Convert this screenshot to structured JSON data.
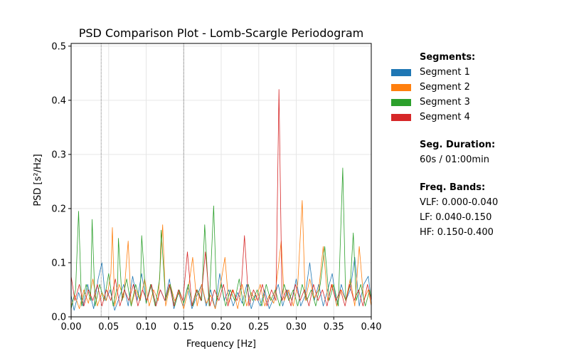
{
  "chart_data": {
    "type": "line",
    "title": "PSD Comparison Plot - Lomb-Scargle Periodogram",
    "xlabel": "Frequency [Hz]",
    "ylabel": "PSD [s²/Hz]",
    "xlim": [
      0.0,
      0.4
    ],
    "ylim": [
      0.0,
      0.505
    ],
    "xticks": [
      "0.00",
      "0.05",
      "0.10",
      "0.15",
      "0.20",
      "0.25",
      "0.30",
      "0.35",
      "0.40"
    ],
    "yticks": [
      "0.0",
      "0.1",
      "0.2",
      "0.3",
      "0.4",
      "0.5"
    ],
    "grid": true,
    "band_boundaries": [
      0.04,
      0.15
    ],
    "legend_placement": "right",
    "series": [
      {
        "name": "Segment 1",
        "color": "#1f77b4",
        "points": [
          [
            0.0,
            0.04
          ],
          [
            0.004,
            0.012
          ],
          [
            0.01,
            0.045
          ],
          [
            0.016,
            0.02
          ],
          [
            0.022,
            0.06
          ],
          [
            0.03,
            0.015
          ],
          [
            0.036,
            0.07
          ],
          [
            0.041,
            0.1
          ],
          [
            0.046,
            0.03
          ],
          [
            0.052,
            0.05
          ],
          [
            0.058,
            0.012
          ],
          [
            0.064,
            0.035
          ],
          [
            0.07,
            0.06
          ],
          [
            0.076,
            0.02
          ],
          [
            0.082,
            0.075
          ],
          [
            0.088,
            0.03
          ],
          [
            0.094,
            0.08
          ],
          [
            0.1,
            0.025
          ],
          [
            0.107,
            0.06
          ],
          [
            0.113,
            0.02
          ],
          [
            0.119,
            0.05
          ],
          [
            0.125,
            0.03
          ],
          [
            0.131,
            0.07
          ],
          [
            0.137,
            0.015
          ],
          [
            0.143,
            0.045
          ],
          [
            0.149,
            0.02
          ],
          [
            0.155,
            0.055
          ],
          [
            0.161,
            0.015
          ],
          [
            0.168,
            0.04
          ],
          [
            0.174,
            0.06
          ],
          [
            0.18,
            0.02
          ],
          [
            0.186,
            0.05
          ],
          [
            0.192,
            0.015
          ],
          [
            0.198,
            0.08
          ],
          [
            0.204,
            0.03
          ],
          [
            0.21,
            0.05
          ],
          [
            0.216,
            0.02
          ],
          [
            0.222,
            0.045
          ],
          [
            0.228,
            0.025
          ],
          [
            0.234,
            0.06
          ],
          [
            0.24,
            0.015
          ],
          [
            0.246,
            0.04
          ],
          [
            0.252,
            0.02
          ],
          [
            0.258,
            0.05
          ],
          [
            0.264,
            0.015
          ],
          [
            0.27,
            0.035
          ],
          [
            0.276,
            0.06
          ],
          [
            0.282,
            0.02
          ],
          [
            0.288,
            0.05
          ],
          [
            0.294,
            0.03
          ],
          [
            0.3,
            0.07
          ],
          [
            0.306,
            0.02
          ],
          [
            0.312,
            0.04
          ],
          [
            0.318,
            0.1
          ],
          [
            0.324,
            0.03
          ],
          [
            0.33,
            0.06
          ],
          [
            0.336,
            0.02
          ],
          [
            0.342,
            0.05
          ],
          [
            0.348,
            0.08
          ],
          [
            0.354,
            0.02
          ],
          [
            0.36,
            0.06
          ],
          [
            0.366,
            0.03
          ],
          [
            0.372,
            0.05
          ],
          [
            0.378,
            0.11
          ],
          [
            0.384,
            0.02
          ],
          [
            0.39,
            0.06
          ],
          [
            0.396,
            0.075
          ],
          [
            0.4,
            0.03
          ]
        ]
      },
      {
        "name": "Segment 2",
        "color": "#ff7f0e",
        "points": [
          [
            0.0,
            0.02
          ],
          [
            0.005,
            0.04
          ],
          [
            0.011,
            0.015
          ],
          [
            0.017,
            0.05
          ],
          [
            0.023,
            0.025
          ],
          [
            0.029,
            0.07
          ],
          [
            0.035,
            0.02
          ],
          [
            0.041,
            0.045
          ],
          [
            0.047,
            0.03
          ],
          [
            0.053,
            0.08
          ],
          [
            0.055,
            0.165
          ],
          [
            0.058,
            0.02
          ],
          [
            0.064,
            0.06
          ],
          [
            0.07,
            0.035
          ],
          [
            0.076,
            0.14
          ],
          [
            0.08,
            0.02
          ],
          [
            0.086,
            0.05
          ],
          [
            0.092,
            0.03
          ],
          [
            0.098,
            0.07
          ],
          [
            0.104,
            0.02
          ],
          [
            0.11,
            0.05
          ],
          [
            0.116,
            0.03
          ],
          [
            0.122,
            0.17
          ],
          [
            0.126,
            0.02
          ],
          [
            0.132,
            0.06
          ],
          [
            0.138,
            0.03
          ],
          [
            0.144,
            0.045
          ],
          [
            0.15,
            0.015
          ],
          [
            0.156,
            0.05
          ],
          [
            0.162,
            0.11
          ],
          [
            0.168,
            0.02
          ],
          [
            0.174,
            0.06
          ],
          [
            0.18,
            0.025
          ],
          [
            0.186,
            0.04
          ],
          [
            0.192,
            0.015
          ],
          [
            0.198,
            0.05
          ],
          [
            0.205,
            0.11
          ],
          [
            0.21,
            0.025
          ],
          [
            0.216,
            0.05
          ],
          [
            0.222,
            0.015
          ],
          [
            0.228,
            0.06
          ],
          [
            0.234,
            0.02
          ],
          [
            0.24,
            0.045
          ],
          [
            0.246,
            0.03
          ],
          [
            0.252,
            0.06
          ],
          [
            0.258,
            0.02
          ],
          [
            0.264,
            0.04
          ],
          [
            0.27,
            0.025
          ],
          [
            0.276,
            0.09
          ],
          [
            0.28,
            0.14
          ],
          [
            0.284,
            0.03
          ],
          [
            0.29,
            0.05
          ],
          [
            0.296,
            0.02
          ],
          [
            0.302,
            0.06
          ],
          [
            0.308,
            0.215
          ],
          [
            0.312,
            0.03
          ],
          [
            0.318,
            0.07
          ],
          [
            0.324,
            0.035
          ],
          [
            0.33,
            0.05
          ],
          [
            0.336,
            0.13
          ],
          [
            0.342,
            0.03
          ],
          [
            0.348,
            0.06
          ],
          [
            0.354,
            0.02
          ],
          [
            0.36,
            0.05
          ],
          [
            0.366,
            0.03
          ],
          [
            0.372,
            0.07
          ],
          [
            0.378,
            0.02
          ],
          [
            0.384,
            0.13
          ],
          [
            0.39,
            0.03
          ],
          [
            0.396,
            0.05
          ],
          [
            0.4,
            0.02
          ]
        ]
      },
      {
        "name": "Segment 3",
        "color": "#2ca02c",
        "points": [
          [
            0.0,
            0.015
          ],
          [
            0.006,
            0.05
          ],
          [
            0.01,
            0.195
          ],
          [
            0.014,
            0.02
          ],
          [
            0.02,
            0.06
          ],
          [
            0.026,
            0.03
          ],
          [
            0.028,
            0.18
          ],
          [
            0.032,
            0.02
          ],
          [
            0.038,
            0.06
          ],
          [
            0.044,
            0.03
          ],
          [
            0.05,
            0.08
          ],
          [
            0.056,
            0.02
          ],
          [
            0.062,
            0.06
          ],
          [
            0.063,
            0.145
          ],
          [
            0.068,
            0.03
          ],
          [
            0.074,
            0.07
          ],
          [
            0.08,
            0.02
          ],
          [
            0.086,
            0.06
          ],
          [
            0.092,
            0.03
          ],
          [
            0.094,
            0.15
          ],
          [
            0.1,
            0.025
          ],
          [
            0.106,
            0.06
          ],
          [
            0.112,
            0.02
          ],
          [
            0.118,
            0.07
          ],
          [
            0.12,
            0.16
          ],
          [
            0.126,
            0.03
          ],
          [
            0.132,
            0.06
          ],
          [
            0.138,
            0.02
          ],
          [
            0.144,
            0.05
          ],
          [
            0.15,
            0.025
          ],
          [
            0.156,
            0.06
          ],
          [
            0.162,
            0.02
          ],
          [
            0.168,
            0.05
          ],
          [
            0.174,
            0.03
          ],
          [
            0.178,
            0.17
          ],
          [
            0.184,
            0.02
          ],
          [
            0.19,
            0.205
          ],
          [
            0.194,
            0.03
          ],
          [
            0.2,
            0.06
          ],
          [
            0.206,
            0.02
          ],
          [
            0.212,
            0.05
          ],
          [
            0.218,
            0.03
          ],
          [
            0.224,
            0.07
          ],
          [
            0.23,
            0.02
          ],
          [
            0.236,
            0.06
          ],
          [
            0.242,
            0.03
          ],
          [
            0.248,
            0.05
          ],
          [
            0.254,
            0.02
          ],
          [
            0.26,
            0.06
          ],
          [
            0.266,
            0.03
          ],
          [
            0.272,
            0.05
          ],
          [
            0.278,
            0.02
          ],
          [
            0.284,
            0.06
          ],
          [
            0.29,
            0.03
          ],
          [
            0.296,
            0.05
          ],
          [
            0.302,
            0.02
          ],
          [
            0.308,
            0.06
          ],
          [
            0.314,
            0.03
          ],
          [
            0.32,
            0.05
          ],
          [
            0.326,
            0.02
          ],
          [
            0.332,
            0.06
          ],
          [
            0.338,
            0.13
          ],
          [
            0.344,
            0.03
          ],
          [
            0.35,
            0.06
          ],
          [
            0.356,
            0.02
          ],
          [
            0.362,
            0.275
          ],
          [
            0.366,
            0.03
          ],
          [
            0.372,
            0.06
          ],
          [
            0.376,
            0.155
          ],
          [
            0.38,
            0.03
          ],
          [
            0.386,
            0.06
          ],
          [
            0.392,
            0.02
          ],
          [
            0.398,
            0.05
          ],
          [
            0.4,
            0.03
          ]
        ]
      },
      {
        "name": "Segment 4",
        "color": "#d62728",
        "points": [
          [
            0.0,
            0.075
          ],
          [
            0.005,
            0.03
          ],
          [
            0.011,
            0.06
          ],
          [
            0.017,
            0.02
          ],
          [
            0.023,
            0.05
          ],
          [
            0.029,
            0.03
          ],
          [
            0.035,
            0.06
          ],
          [
            0.041,
            0.02
          ],
          [
            0.047,
            0.05
          ],
          [
            0.053,
            0.03
          ],
          [
            0.059,
            0.07
          ],
          [
            0.065,
            0.02
          ],
          [
            0.071,
            0.05
          ],
          [
            0.077,
            0.03
          ],
          [
            0.083,
            0.06
          ],
          [
            0.089,
            0.02
          ],
          [
            0.095,
            0.05
          ],
          [
            0.101,
            0.03
          ],
          [
            0.107,
            0.06
          ],
          [
            0.113,
            0.02
          ],
          [
            0.119,
            0.05
          ],
          [
            0.125,
            0.03
          ],
          [
            0.131,
            0.06
          ],
          [
            0.137,
            0.02
          ],
          [
            0.143,
            0.05
          ],
          [
            0.149,
            0.03
          ],
          [
            0.155,
            0.12
          ],
          [
            0.161,
            0.02
          ],
          [
            0.167,
            0.05
          ],
          [
            0.173,
            0.03
          ],
          [
            0.179,
            0.12
          ],
          [
            0.185,
            0.02
          ],
          [
            0.191,
            0.05
          ],
          [
            0.197,
            0.03
          ],
          [
            0.203,
            0.06
          ],
          [
            0.209,
            0.02
          ],
          [
            0.215,
            0.05
          ],
          [
            0.221,
            0.03
          ],
          [
            0.227,
            0.06
          ],
          [
            0.231,
            0.15
          ],
          [
            0.237,
            0.02
          ],
          [
            0.243,
            0.05
          ],
          [
            0.249,
            0.03
          ],
          [
            0.255,
            0.06
          ],
          [
            0.261,
            0.02
          ],
          [
            0.267,
            0.05
          ],
          [
            0.273,
            0.03
          ],
          [
            0.277,
            0.42
          ],
          [
            0.281,
            0.03
          ],
          [
            0.287,
            0.05
          ],
          [
            0.293,
            0.02
          ],
          [
            0.299,
            0.06
          ],
          [
            0.305,
            0.03
          ],
          [
            0.311,
            0.05
          ],
          [
            0.317,
            0.02
          ],
          [
            0.323,
            0.06
          ],
          [
            0.329,
            0.03
          ],
          [
            0.335,
            0.05
          ],
          [
            0.341,
            0.02
          ],
          [
            0.347,
            0.06
          ],
          [
            0.353,
            0.03
          ],
          [
            0.359,
            0.05
          ],
          [
            0.365,
            0.02
          ],
          [
            0.371,
            0.06
          ],
          [
            0.377,
            0.03
          ],
          [
            0.383,
            0.05
          ],
          [
            0.389,
            0.02
          ],
          [
            0.395,
            0.06
          ],
          [
            0.4,
            0.03
          ]
        ]
      }
    ]
  },
  "legend": {
    "segments_title": "Segments:",
    "items": [
      "Segment 1",
      "Segment 2",
      "Segment 3",
      "Segment 4"
    ],
    "duration_title": "Seg. Duration:",
    "duration_value": "60s / 01:00min",
    "bands_title": "Freq. Bands:",
    "bands": [
      "VLF: 0.000-0.040",
      "LF: 0.040-0.150",
      "HF: 0.150-0.400"
    ]
  }
}
